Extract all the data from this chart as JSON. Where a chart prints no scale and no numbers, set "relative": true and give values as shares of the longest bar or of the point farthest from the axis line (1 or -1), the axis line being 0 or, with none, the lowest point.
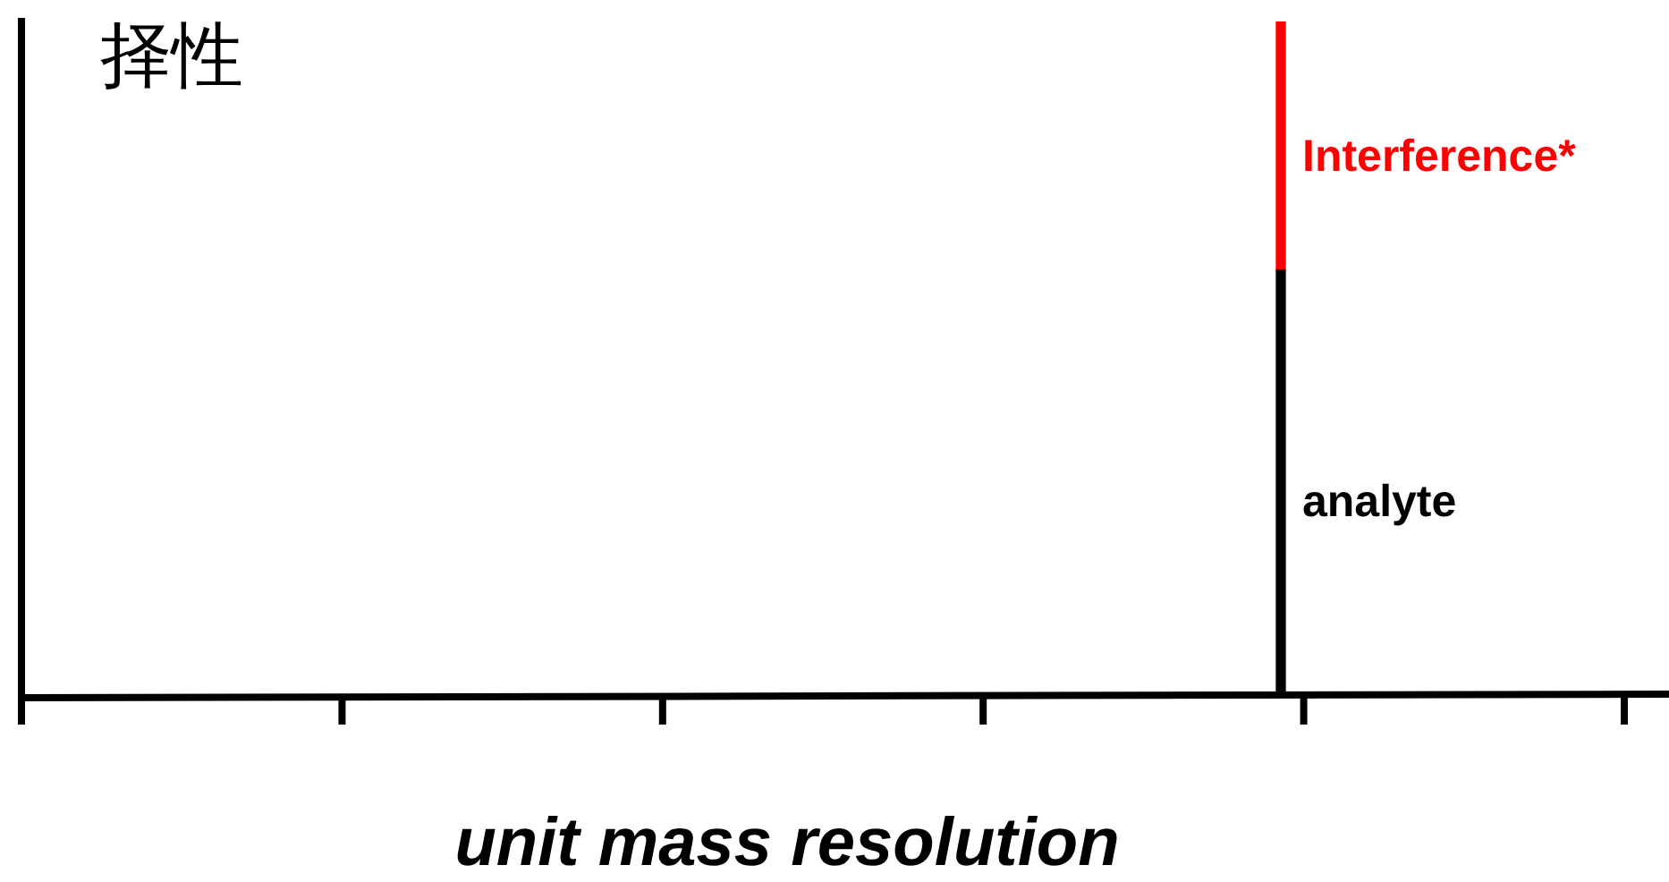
{
  "chart_data": {
    "type": "bar",
    "stacked": true,
    "relative": true,
    "title": "择性",
    "xlabel": "unit mass resolution",
    "categories": [
      null
    ],
    "series": [
      {
        "name": "analyte",
        "color": "#000000",
        "values": [
          0.63
        ]
      },
      {
        "name": "Interference*",
        "color": "#ff0000",
        "values": [
          0.37
        ]
      }
    ],
    "legend": false,
    "grid": false,
    "tick_labels": false
  }
}
